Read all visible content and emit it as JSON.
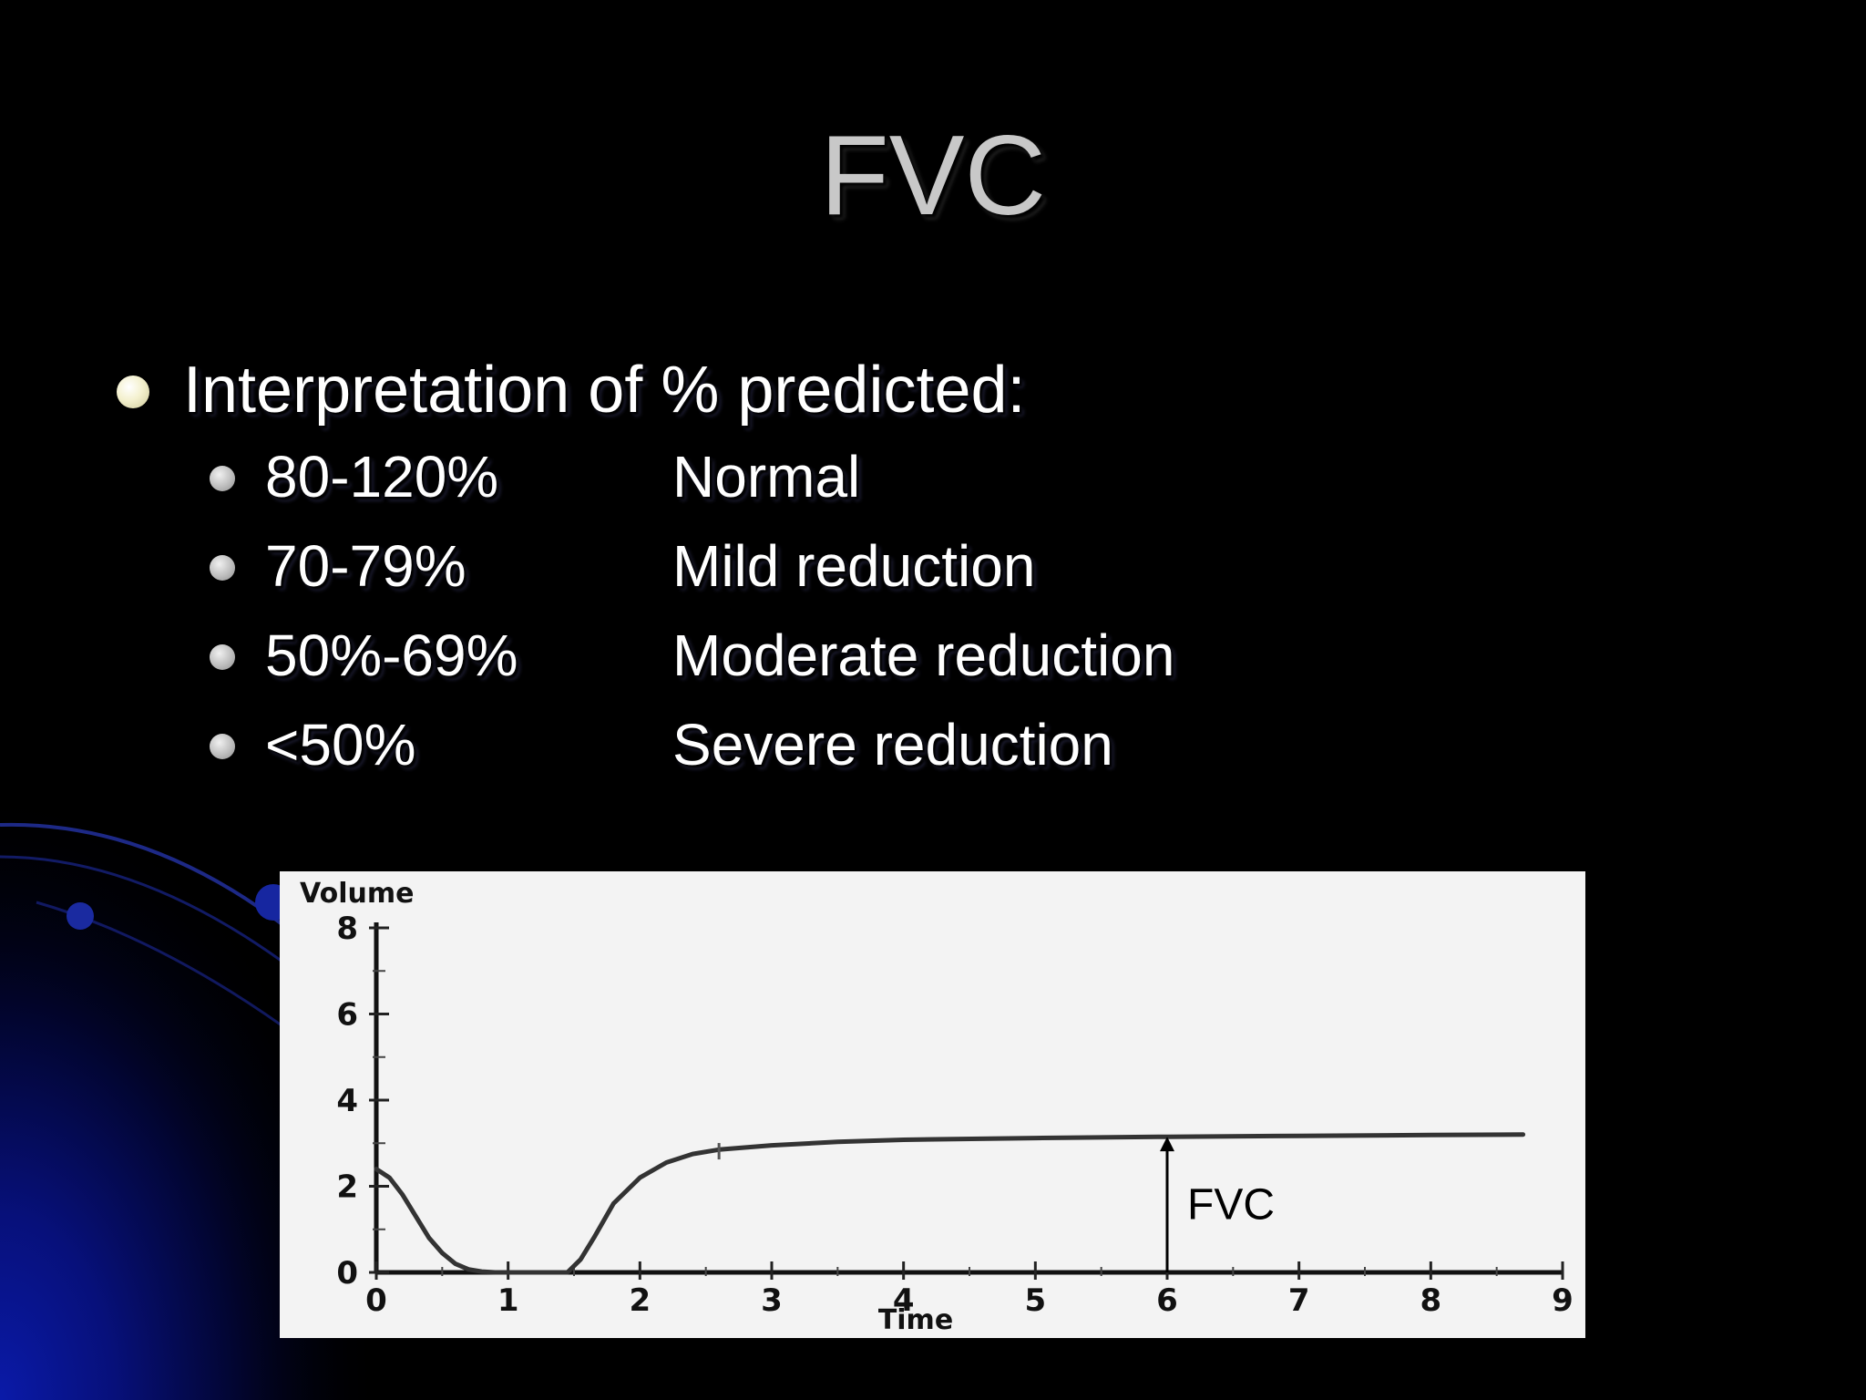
{
  "slide": {
    "title": "FVC",
    "main_bullet": "Interpretation of % predicted:",
    "items": [
      {
        "range": "80-120%",
        "label": "Normal"
      },
      {
        "range": "70-79%",
        "label": "Mild reduction"
      },
      {
        "range": "50%-69%",
        "label": "Moderate reduction"
      },
      {
        "range": "<50%",
        "label": "Severe reduction"
      }
    ],
    "colors": {
      "background": "#000000",
      "accent": "#0a1aa8",
      "title": "#c8c8c8",
      "text": "#ffffff",
      "main_bullet_dot": "#f4f1cf"
    }
  },
  "chart_data": {
    "type": "line",
    "xlabel": "Time",
    "ylabel": "Volume",
    "xlim": [
      0,
      9
    ],
    "ylim": [
      0,
      8
    ],
    "x_ticks": [
      "0",
      "1",
      "2",
      "3",
      "4",
      "5",
      "6",
      "7",
      "8",
      "9"
    ],
    "y_ticks": [
      "0",
      "2",
      "4",
      "6",
      "8"
    ],
    "grid": false,
    "legend": "none",
    "series": [
      {
        "x": [
          0,
          0.1,
          0.2,
          0.3,
          0.4,
          0.5,
          0.6,
          0.7,
          0.8,
          0.9,
          1.0,
          1.2,
          1.45,
          1.55,
          1.65,
          1.8,
          2.0,
          2.2,
          2.4,
          2.6,
          3.0,
          3.5,
          4.0,
          5.0,
          6.0,
          7.0,
          8.0,
          8.7
        ],
        "y": [
          2.4,
          2.2,
          1.8,
          1.3,
          0.8,
          0.45,
          0.2,
          0.07,
          0.02,
          0.0,
          0.0,
          0.0,
          0.0,
          0.3,
          0.8,
          1.6,
          2.2,
          2.55,
          2.75,
          2.85,
          2.95,
          3.03,
          3.08,
          3.12,
          3.15,
          3.17,
          3.19,
          3.2
        ]
      }
    ],
    "annotations": [
      {
        "text": "FVC",
        "x": 6,
        "y_from": 0,
        "y_to": 3.15,
        "arrow": "up"
      }
    ]
  }
}
